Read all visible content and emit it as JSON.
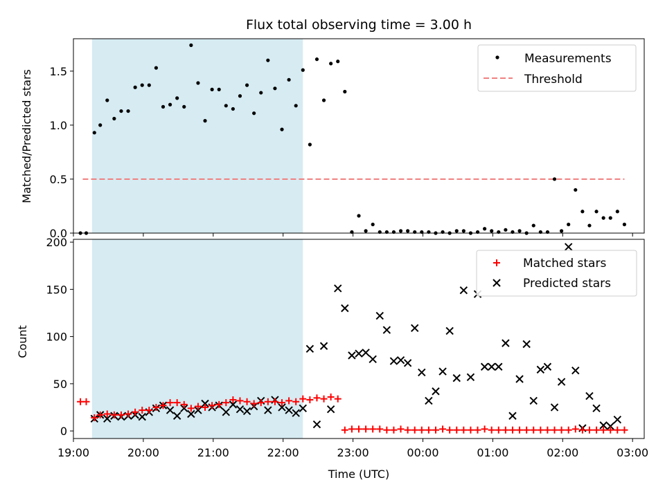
{
  "figure": {
    "title": "Flux total observing time = 3.00 h"
  },
  "colors": {
    "measurement": "#000000",
    "threshold": "#f08080",
    "matched": "#ff0000",
    "predicted": "#000000",
    "shade": "#add8e6"
  },
  "chart_data": [
    {
      "type": "scatter",
      "ylabel": "Matched/Predicted stars",
      "xlabel": "",
      "xlim": [
        "19:00",
        "03:10"
      ],
      "ylim": [
        0,
        1.8
      ],
      "yticks": [
        "0.0",
        "0.5",
        "1.0",
        "1.5"
      ],
      "highlight_span": [
        "19:16",
        "22:17"
      ],
      "legend": {
        "position": "top-right",
        "entries": [
          "Measurements",
          "Threshold"
        ]
      },
      "threshold": {
        "name": "Threshold",
        "value": 0.5,
        "x_range": [
          "19:08",
          "02:53"
        ]
      },
      "series": [
        {
          "name": "Measurements",
          "x": [
            "19:06",
            "19:11",
            "19:18",
            "19:23",
            "19:29",
            "19:35",
            "19:41",
            "19:47",
            "19:53",
            "19:59",
            "20:05",
            "20:11",
            "20:17",
            "20:23",
            "20:29",
            "20:35",
            "20:41",
            "20:47",
            "20:53",
            "20:59",
            "21:05",
            "21:11",
            "21:17",
            "21:23",
            "21:29",
            "21:35",
            "21:41",
            "21:47",
            "21:53",
            "21:59",
            "22:05",
            "22:11",
            "22:17",
            "22:23",
            "22:29",
            "22:35",
            "22:41",
            "22:47",
            "22:53",
            "22:59",
            "23:05",
            "23:11",
            "23:17",
            "23:23",
            "23:29",
            "23:35",
            "23:41",
            "23:47",
            "23:53",
            "23:59",
            "00:05",
            "00:11",
            "00:17",
            "00:23",
            "00:29",
            "00:35",
            "00:41",
            "00:47",
            "00:53",
            "00:59",
            "01:05",
            "01:11",
            "01:17",
            "01:23",
            "01:29",
            "01:35",
            "01:41",
            "01:47",
            "01:53",
            "01:59",
            "02:05",
            "02:11",
            "02:17",
            "02:23",
            "02:29",
            "02:35",
            "02:41",
            "02:47",
            "02:53"
          ],
          "y": [
            0.0,
            0.0,
            0.93,
            1.0,
            1.23,
            1.06,
            1.13,
            1.13,
            1.35,
            1.37,
            1.37,
            1.53,
            1.17,
            1.19,
            1.25,
            1.17,
            1.74,
            1.39,
            1.04,
            1.33,
            1.33,
            1.18,
            1.15,
            1.27,
            1.37,
            1.11,
            1.3,
            1.6,
            1.34,
            0.96,
            1.42,
            1.18,
            1.51,
            0.82,
            1.61,
            1.23,
            1.57,
            1.59,
            1.31,
            0.01,
            0.16,
            0.02,
            0.08,
            0.01,
            0.01,
            0.01,
            0.02,
            0.02,
            0.01,
            0.01,
            0.01,
            0.0,
            0.01,
            0.0,
            0.02,
            0.02,
            0.0,
            0.01,
            0.04,
            0.02,
            0.01,
            0.03,
            0.01,
            0.02,
            0.0,
            0.07,
            0.01,
            0.01,
            0.5,
            0.02,
            0.08,
            0.4,
            0.2,
            0.07,
            0.2,
            0.14,
            0.14,
            0.2,
            0.08
          ]
        }
      ]
    },
    {
      "type": "scatter",
      "ylabel": "Count",
      "xlabel": "Time (UTC)",
      "xlim": [
        "19:00",
        "03:10"
      ],
      "ylim": [
        -8,
        203
      ],
      "yticks": [
        "0",
        "50",
        "100",
        "150",
        "200"
      ],
      "xticks": [
        "19:00",
        "20:00",
        "21:00",
        "22:00",
        "23:00",
        "00:00",
        "01:00",
        "02:00",
        "03:00"
      ],
      "highlight_span": [
        "19:16",
        "22:17"
      ],
      "legend": {
        "position": "top-right",
        "entries": [
          "Matched stars",
          "Predicted stars"
        ]
      },
      "series": [
        {
          "name": "Matched stars",
          "marker": "plus",
          "x": [
            "19:06",
            "19:11",
            "19:18",
            "19:23",
            "19:29",
            "19:35",
            "19:41",
            "19:47",
            "19:53",
            "19:59",
            "20:05",
            "20:11",
            "20:17",
            "20:23",
            "20:29",
            "20:35",
            "20:41",
            "20:47",
            "20:53",
            "20:59",
            "21:05",
            "21:11",
            "21:17",
            "21:23",
            "21:29",
            "21:35",
            "21:41",
            "21:47",
            "21:53",
            "21:59",
            "22:05",
            "22:11",
            "22:17",
            "22:23",
            "22:29",
            "22:35",
            "22:41",
            "22:47",
            "22:53",
            "22:59",
            "23:05",
            "23:11",
            "23:17",
            "23:23",
            "23:29",
            "23:35",
            "23:41",
            "23:47",
            "23:53",
            "23:59",
            "00:05",
            "00:11",
            "00:17",
            "00:23",
            "00:29",
            "00:35",
            "00:41",
            "00:47",
            "00:53",
            "00:59",
            "01:05",
            "01:11",
            "01:17",
            "01:23",
            "01:29",
            "01:35",
            "01:41",
            "01:47",
            "01:53",
            "01:59",
            "02:05",
            "02:11",
            "02:17",
            "02:23",
            "02:29",
            "02:35",
            "02:41",
            "02:47",
            "02:53"
          ],
          "y": [
            31,
            31,
            14,
            17,
            18,
            17,
            17,
            18,
            20,
            22,
            22,
            25,
            27,
            30,
            30,
            28,
            24,
            26,
            25,
            27,
            28,
            30,
            33,
            32,
            31,
            29,
            30,
            31,
            31,
            30,
            32,
            31,
            34,
            33,
            35,
            34,
            36,
            34,
            1,
            2,
            2,
            2,
            2,
            2,
            1,
            1,
            2,
            1,
            1,
            1,
            1,
            1,
            2,
            1,
            1,
            1,
            1,
            1,
            2,
            1,
            1,
            1,
            1,
            1,
            1,
            1,
            1,
            1,
            1,
            1,
            1,
            2,
            1,
            1,
            1,
            1,
            1,
            1,
            1
          ]
        },
        {
          "name": "Predicted stars",
          "marker": "x",
          "x": [
            "19:18",
            "19:23",
            "19:29",
            "19:35",
            "19:41",
            "19:47",
            "19:53",
            "19:59",
            "20:05",
            "20:11",
            "20:17",
            "20:23",
            "20:29",
            "20:35",
            "20:41",
            "20:47",
            "20:53",
            "20:59",
            "21:05",
            "21:11",
            "21:17",
            "21:23",
            "21:29",
            "21:35",
            "21:41",
            "21:47",
            "21:53",
            "21:59",
            "22:05",
            "22:11",
            "22:17",
            "22:23",
            "22:29",
            "22:35",
            "22:41",
            "22:47",
            "22:53",
            "22:59",
            "23:05",
            "23:11",
            "23:17",
            "23:23",
            "23:29",
            "23:35",
            "23:41",
            "23:47",
            "23:53",
            "23:59",
            "00:05",
            "00:11",
            "00:17",
            "00:23",
            "00:29",
            "00:35",
            "00:41",
            "00:47",
            "00:53",
            "00:59",
            "01:05",
            "01:11",
            "01:17",
            "01:23",
            "01:29",
            "01:35",
            "01:41",
            "01:47",
            "01:53",
            "01:59",
            "02:05",
            "02:11",
            "02:17",
            "02:23",
            "02:29",
            "02:35",
            "02:41",
            "02:47"
          ],
          "y": [
            13,
            17,
            13,
            16,
            15,
            16,
            17,
            15,
            20,
            24,
            27,
            22,
            16,
            24,
            18,
            22,
            29,
            25,
            27,
            20,
            28,
            23,
            21,
            26,
            32,
            22,
            33,
            25,
            22,
            19,
            24,
            87,
            7,
            90,
            23,
            151,
            130,
            80,
            82,
            83,
            76,
            122,
            107,
            74,
            75,
            72,
            109,
            62,
            32,
            42,
            63,
            106,
            56,
            149,
            57,
            145,
            68,
            68,
            68,
            93,
            16,
            55,
            92,
            32,
            65,
            68,
            25,
            52,
            195,
            64,
            3,
            37,
            24,
            6,
            5,
            12
          ]
        }
      ]
    }
  ]
}
